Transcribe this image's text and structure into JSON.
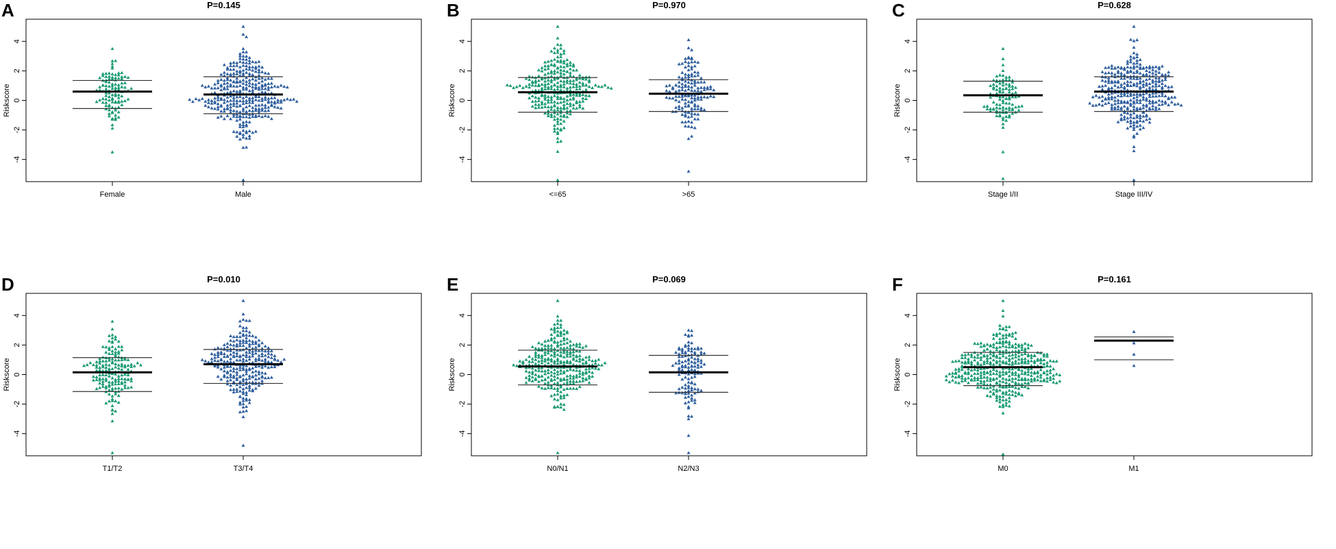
{
  "colors": {
    "group1": "#1a9a74",
    "group2": "#2f5f9e",
    "mean": "#000000",
    "sd": "#333333"
  },
  "chart_data": [
    {
      "type": "scatter",
      "subtype": "beeswarm",
      "panel": "A",
      "title": "P=0.145",
      "ylabel": "Riskscore",
      "ylim": [
        -5.5,
        5.5
      ],
      "yticks": [
        -4,
        -2,
        0,
        2,
        4
      ],
      "groups": [
        {
          "name": "Female",
          "n": 110,
          "mean": 0.6,
          "sd_upper": 1.35,
          "sd_lower": -0.55,
          "min": -3.5,
          "max": 3.5
        },
        {
          "name": "Male",
          "n": 360,
          "mean": 0.4,
          "sd_upper": 1.6,
          "sd_lower": -0.9,
          "min": -5.4,
          "max": 5.0
        }
      ]
    },
    {
      "type": "scatter",
      "subtype": "beeswarm",
      "panel": "B",
      "title": "P=0.970",
      "ylabel": "Riskscore",
      "ylim": [
        -5.5,
        5.5
      ],
      "yticks": [
        -4,
        -2,
        0,
        2,
        4
      ],
      "groups": [
        {
          "name": "<=65",
          "n": 310,
          "mean": 0.55,
          "sd_upper": 1.55,
          "sd_lower": -0.8,
          "min": -5.4,
          "max": 5.0
        },
        {
          "name": ">65",
          "n": 160,
          "mean": 0.45,
          "sd_upper": 1.4,
          "sd_lower": -0.75,
          "min": -4.8,
          "max": 4.1
        }
      ]
    },
    {
      "type": "scatter",
      "subtype": "beeswarm",
      "panel": "C",
      "title": "P=0.628",
      "ylabel": "Riskscore",
      "ylim": [
        -5.5,
        5.5
      ],
      "yticks": [
        -4,
        -2,
        0,
        2,
        4
      ],
      "groups": [
        {
          "name": "Stage I/II",
          "n": 110,
          "mean": 0.35,
          "sd_upper": 1.3,
          "sd_lower": -0.8,
          "min": -5.3,
          "max": 3.5
        },
        {
          "name": "Stage III/IV",
          "n": 360,
          "mean": 0.6,
          "sd_upper": 1.6,
          "sd_lower": -0.75,
          "min": -5.4,
          "max": 5.0
        }
      ]
    },
    {
      "type": "scatter",
      "subtype": "beeswarm",
      "panel": "D",
      "title": "P=0.010",
      "ylabel": "Riskscore",
      "ylim": [
        -5.5,
        5.5
      ],
      "yticks": [
        -4,
        -2,
        0,
        2,
        4
      ],
      "groups": [
        {
          "name": "T1/T2",
          "n": 170,
          "mean": 0.15,
          "sd_upper": 1.15,
          "sd_lower": -1.15,
          "min": -5.3,
          "max": 3.6
        },
        {
          "name": "T3/T4",
          "n": 300,
          "mean": 0.7,
          "sd_upper": 1.7,
          "sd_lower": -0.6,
          "min": -4.8,
          "max": 5.0
        }
      ]
    },
    {
      "type": "scatter",
      "subtype": "beeswarm",
      "panel": "E",
      "title": "P=0.069",
      "ylabel": "Riskscore",
      "ylim": [
        -5.5,
        5.5
      ],
      "yticks": [
        -4,
        -2,
        0,
        2,
        4
      ],
      "groups": [
        {
          "name": "N0/N1",
          "n": 330,
          "mean": 0.55,
          "sd_upper": 1.65,
          "sd_lower": -0.7,
          "min": -5.3,
          "max": 5.0
        },
        {
          "name": "N2/N3",
          "n": 130,
          "mean": 0.15,
          "sd_upper": 1.3,
          "sd_lower": -1.2,
          "min": -5.3,
          "max": 3.0
        }
      ]
    },
    {
      "type": "scatter",
      "subtype": "beeswarm",
      "panel": "F",
      "title": "P=0.161",
      "ylabel": "Riskscore",
      "ylim": [
        -5.5,
        5.5
      ],
      "yticks": [
        -4,
        -2,
        0,
        2,
        4
      ],
      "groups": [
        {
          "name": "M0",
          "n": 440,
          "mean": 0.5,
          "sd_upper": 1.5,
          "sd_lower": -0.75,
          "min": -5.4,
          "max": 5.0
        },
        {
          "name": "M1",
          "n": 4,
          "mean": 2.3,
          "sd_upper": 2.55,
          "sd_lower": 1.0,
          "min": 0.6,
          "max": 2.9
        }
      ]
    }
  ]
}
